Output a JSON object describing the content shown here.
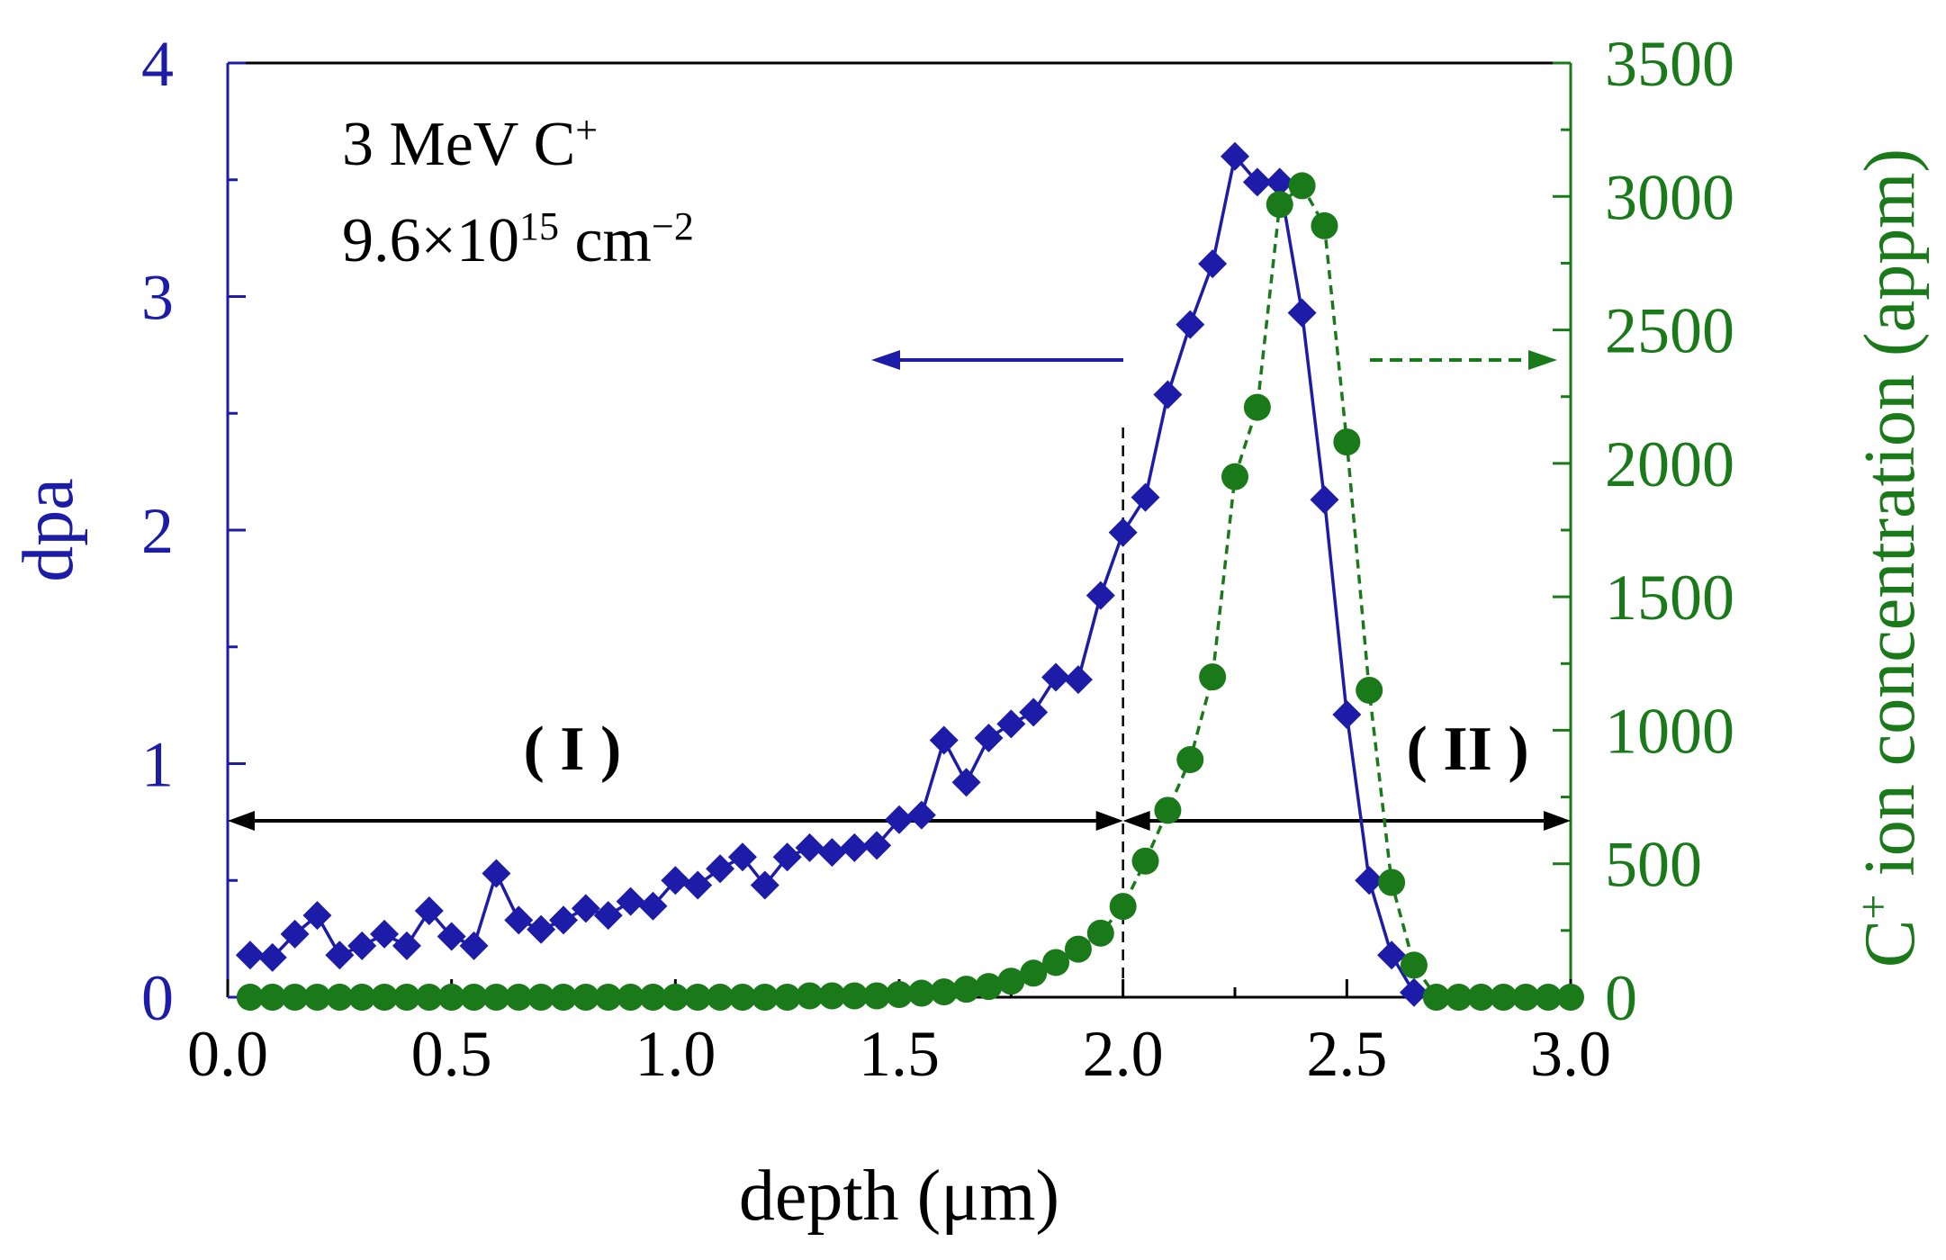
{
  "chart_data": {
    "type": "scatter",
    "xlabel": "depth (μm)",
    "ylabel_left": "dpa",
    "ylabel_right": "ion concentration (appm)",
    "ylabel_right_ion": "C",
    "ylabel_right_ion_sup": "+",
    "xlim": [
      0.0,
      3.0
    ],
    "ylim_left": [
      0,
      4
    ],
    "ylim_right": [
      0,
      3500
    ],
    "x_ticks": [
      "0.0",
      "0.5",
      "1.0",
      "1.5",
      "2.0",
      "2.5",
      "3.0"
    ],
    "y_left_ticks": [
      "0",
      "1",
      "2",
      "3",
      "4"
    ],
    "y_right_ticks": [
      "0",
      "500",
      "1000",
      "1500",
      "2000",
      "2500",
      "3000",
      "3500"
    ],
    "annotation": {
      "line1_main": "3 MeV C",
      "line1_sup": "+",
      "line2_main": "9.6×10",
      "line2_sup": "15",
      "line2_unit": " cm",
      "line2_unit_sup": "−2"
    },
    "regions": [
      {
        "label": "( I )",
        "from": 0.0,
        "to": 2.0
      },
      {
        "label": "( II )",
        "from": 2.0,
        "to": 3.0
      }
    ],
    "divider_x": 2.0,
    "colors": {
      "dpa": "#1c1ca8",
      "ion": "#1a7a1a",
      "axis": "#000000"
    },
    "series": [
      {
        "axis": "left",
        "marker": "diamond",
        "line": "solid",
        "x": [
          0.05,
          0.1,
          0.15,
          0.2,
          0.25,
          0.3,
          0.35,
          0.4,
          0.45,
          0.5,
          0.55,
          0.6,
          0.65,
          0.7,
          0.75,
          0.8,
          0.85,
          0.9,
          0.95,
          1.0,
          1.05,
          1.1,
          1.15,
          1.2,
          1.25,
          1.3,
          1.35,
          1.4,
          1.45,
          1.5,
          1.55,
          1.6,
          1.65,
          1.7,
          1.75,
          1.8,
          1.85,
          1.9,
          1.95,
          2.0,
          2.05,
          2.1,
          2.15,
          2.2,
          2.25,
          2.3,
          2.35,
          2.4,
          2.45,
          2.5,
          2.55,
          2.6,
          2.65
        ],
        "values": [
          0.18,
          0.17,
          0.27,
          0.35,
          0.18,
          0.22,
          0.27,
          0.22,
          0.37,
          0.26,
          0.22,
          0.53,
          0.33,
          0.29,
          0.33,
          0.38,
          0.35,
          0.41,
          0.39,
          0.5,
          0.48,
          0.55,
          0.6,
          0.48,
          0.6,
          0.64,
          0.62,
          0.64,
          0.65,
          0.76,
          0.78,
          1.1,
          0.92,
          1.11,
          1.17,
          1.22,
          1.37,
          1.36,
          1.72,
          1.99,
          2.14,
          2.58,
          2.88,
          3.14,
          3.6,
          3.49,
          3.49,
          2.93,
          2.13,
          1.21,
          0.5,
          0.18,
          0.02
        ]
      },
      {
        "axis": "right",
        "marker": "circle",
        "line": "dashed",
        "x": [
          0.05,
          0.1,
          0.15,
          0.2,
          0.25,
          0.3,
          0.35,
          0.4,
          0.45,
          0.5,
          0.55,
          0.6,
          0.65,
          0.7,
          0.75,
          0.8,
          0.85,
          0.9,
          0.95,
          1.0,
          1.05,
          1.1,
          1.15,
          1.2,
          1.25,
          1.3,
          1.35,
          1.4,
          1.45,
          1.5,
          1.55,
          1.6,
          1.65,
          1.7,
          1.75,
          1.8,
          1.85,
          1.9,
          1.95,
          2.0,
          2.05,
          2.1,
          2.15,
          2.2,
          2.25,
          2.3,
          2.35,
          2.4,
          2.45,
          2.5,
          2.55,
          2.6,
          2.65,
          2.7,
          2.75,
          2.8,
          2.85,
          2.9,
          2.95,
          3.0
        ],
        "values": [
          0,
          0,
          0,
          0,
          0,
          0,
          0,
          0,
          0,
          0,
          0,
          0,
          0,
          0,
          0,
          0,
          0,
          0,
          0,
          0,
          0,
          0,
          0,
          0,
          0,
          5,
          5,
          5,
          5,
          10,
          15,
          20,
          30,
          40,
          60,
          90,
          130,
          180,
          240,
          340,
          510,
          700,
          890,
          1200,
          1950,
          2210,
          2970,
          3040,
          2890,
          2080,
          1150,
          430,
          120,
          0,
          0,
          0,
          0,
          0,
          0,
          0
        ]
      }
    ]
  }
}
